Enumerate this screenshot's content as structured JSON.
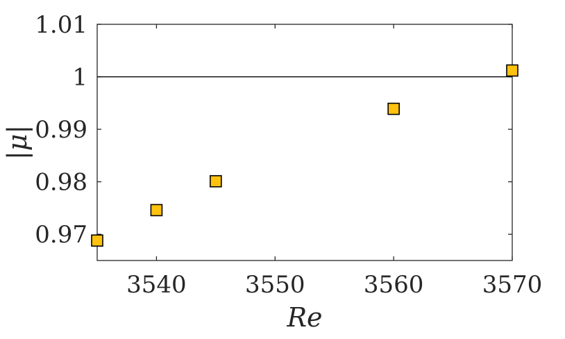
{
  "chart_data": {
    "type": "scatter",
    "xlabel": "Re",
    "ylabel": "|μ|",
    "xlim": [
      3535,
      3570
    ],
    "ylim": [
      0.965,
      1.01
    ],
    "x_ticks": [
      3540,
      3550,
      3560,
      3570
    ],
    "y_ticks": [
      0.97,
      0.98,
      0.99,
      1,
      1.01
    ],
    "x_tick_labels": [
      "3540",
      "3550",
      "3560",
      "3570"
    ],
    "y_tick_labels": [
      "0.97",
      "0.98",
      "0.99",
      "1",
      "1.01"
    ],
    "reference_line": {
      "y": 1
    },
    "series": [
      {
        "marker": "square",
        "color": "#FFC20E",
        "edge_color": "#000000",
        "points": [
          {
            "x": 3535,
            "y": 0.9688
          },
          {
            "x": 3540,
            "y": 0.9746
          },
          {
            "x": 3545,
            "y": 0.9801
          },
          {
            "x": 3560,
            "y": 0.9939
          },
          {
            "x": 3570,
            "y": 1.0012
          }
        ]
      }
    ],
    "grid": false,
    "box": true
  }
}
